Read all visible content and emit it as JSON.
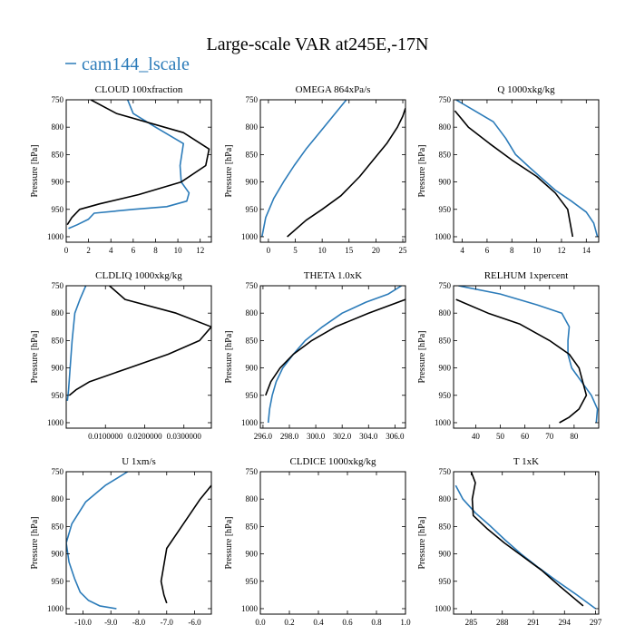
{
  "figure": {
    "title": "Large-scale VAR at245E,-17N",
    "legend": {
      "label": "cam144_lscale",
      "color": "#2b7bb9"
    }
  },
  "colors": {
    "model": "#2b7bb9",
    "reference": "#000000",
    "axis": "#000000"
  },
  "chart_data": [
    {
      "type": "line",
      "title": "CLOUD  100xfraction",
      "ylabel": "Pressure [hPa]",
      "xlim": [
        0,
        13
      ],
      "ylim": [
        1010,
        750
      ],
      "xticks": [
        0,
        2,
        4,
        6,
        8,
        10,
        12
      ],
      "xtick_labels": [
        "0",
        "2",
        "4",
        "6",
        "8",
        "10",
        "12"
      ],
      "yticks": [
        750,
        800,
        850,
        900,
        950,
        1000
      ],
      "ytick_labels": [
        "750",
        "800",
        "850",
        "900",
        "950",
        "1000"
      ],
      "series": [
        {
          "name": "cam144_lscale",
          "color": "#2b7bb9",
          "x": [
            5.5,
            6.0,
            8.0,
            10.5,
            10.2,
            10.3,
            11.0,
            10.8,
            9.0,
            6.0,
            2.5,
            2.0,
            1.0,
            0.2
          ],
          "y": [
            750,
            775,
            800,
            830,
            870,
            900,
            920,
            935,
            945,
            950,
            957,
            968,
            978,
            985
          ]
        },
        {
          "name": "reference",
          "color": "#000000",
          "x": [
            2.2,
            4.5,
            10.5,
            12.8,
            12.5,
            10.3,
            6.5,
            3.0,
            1.2,
            0.5,
            0.1
          ],
          "y": [
            750,
            775,
            810,
            840,
            870,
            900,
            923,
            940,
            950,
            965,
            978
          ]
        }
      ]
    },
    {
      "type": "line",
      "title": "OMEGA  864xPa/s",
      "ylabel": "Pressure [hPa]",
      "xlim": [
        -1.5,
        25.5
      ],
      "ylim": [
        1010,
        750
      ],
      "xticks": [
        0,
        5,
        10,
        15,
        20,
        25
      ],
      "xtick_labels": [
        "0",
        "5",
        "10",
        "15",
        "20",
        "25"
      ],
      "yticks": [
        750,
        800,
        850,
        900,
        950,
        1000
      ],
      "ytick_labels": [
        "750",
        "800",
        "850",
        "900",
        "950",
        "1000"
      ],
      "series": [
        {
          "name": "cam144_lscale",
          "color": "#2b7bb9",
          "x": [
            14.5,
            12.0,
            9.5,
            7.0,
            4.8,
            2.8,
            1.0,
            -0.5,
            -1.2
          ],
          "y": [
            750,
            780,
            810,
            840,
            870,
            900,
            930,
            965,
            1000
          ]
        },
        {
          "name": "reference",
          "color": "#000000",
          "x": [
            25.5,
            25.0,
            24.0,
            22.0,
            19.5,
            17.0,
            13.5,
            10.0,
            7.0,
            3.5
          ],
          "y": [
            765,
            780,
            800,
            830,
            860,
            890,
            925,
            950,
            970,
            1000
          ]
        }
      ]
    },
    {
      "type": "line",
      "title": "Q  1000xkg/kg",
      "ylabel": "Pressure [hPa]",
      "xlim": [
        3.3,
        15
      ],
      "ylim": [
        1010,
        750
      ],
      "xticks": [
        4,
        6,
        8,
        10,
        12,
        14
      ],
      "xtick_labels": [
        "4",
        "6",
        "8",
        "10",
        "12",
        "14"
      ],
      "yticks": [
        750,
        800,
        850,
        900,
        950,
        1000
      ],
      "ytick_labels": [
        "750",
        "800",
        "850",
        "900",
        "950",
        "1000"
      ],
      "series": [
        {
          "name": "cam144_lscale",
          "color": "#2b7bb9",
          "x": [
            3.5,
            5.0,
            6.5,
            7.5,
            8.3,
            9.5,
            10.5,
            11.5,
            12.8,
            14.0,
            14.6,
            14.9
          ],
          "y": [
            750,
            770,
            790,
            820,
            850,
            875,
            895,
            915,
            935,
            955,
            975,
            1000
          ]
        },
        {
          "name": "reference",
          "color": "#000000",
          "x": [
            3.4,
            4.5,
            6.2,
            8.0,
            10.0,
            11.5,
            12.5,
            12.9
          ],
          "y": [
            770,
            800,
            830,
            860,
            890,
            920,
            950,
            1000
          ]
        }
      ]
    },
    {
      "type": "line",
      "title": "CLDLIQ  1000xkg/kg",
      "ylabel": "Pressure [hPa]",
      "xlim": [
        0,
        0.037
      ],
      "ylim": [
        1010,
        750
      ],
      "xticks": [
        0.01,
        0.02,
        0.03
      ],
      "xtick_labels": [
        "0.0100000",
        "0.0200000",
        "0.0300000"
      ],
      "yticks": [
        750,
        800,
        850,
        900,
        950,
        1000
      ],
      "ytick_labels": [
        "750",
        "800",
        "850",
        "900",
        "950",
        "1000"
      ],
      "series": [
        {
          "name": "cam144_lscale",
          "color": "#2b7bb9",
          "x": [
            0.005,
            0.0035,
            0.0022,
            0.0015,
            0.001,
            0.0006,
            0.0003
          ],
          "y": [
            750,
            775,
            800,
            850,
            900,
            940,
            960
          ]
        },
        {
          "name": "reference",
          "color": "#000000",
          "x": [
            0.011,
            0.015,
            0.028,
            0.037,
            0.034,
            0.026,
            0.016,
            0.006,
            0.0025,
            0.0008
          ],
          "y": [
            750,
            775,
            800,
            825,
            850,
            875,
            900,
            925,
            940,
            950
          ]
        }
      ]
    },
    {
      "type": "line",
      "title": "THETA  1.0xK",
      "ylabel": "Pressure [hPa]",
      "xlim": [
        295.8,
        306.8
      ],
      "ylim": [
        1010,
        750
      ],
      "xticks": [
        296,
        298,
        300,
        302,
        304,
        306
      ],
      "xtick_labels": [
        "296.0",
        "298.0",
        "300.0",
        "302.0",
        "304.0",
        "306.0"
      ],
      "yticks": [
        750,
        800,
        850,
        900,
        950,
        1000
      ],
      "ytick_labels": [
        "750",
        "800",
        "850",
        "900",
        "950",
        "1000"
      ],
      "series": [
        {
          "name": "cam144_lscale",
          "color": "#2b7bb9",
          "x": [
            306.5,
            305.5,
            303.8,
            302.0,
            300.5,
            299.2,
            298.3,
            297.5,
            297.0,
            296.7,
            296.5,
            296.4
          ],
          "y": [
            750,
            765,
            780,
            800,
            825,
            850,
            875,
            900,
            925,
            950,
            975,
            1000
          ]
        },
        {
          "name": "reference",
          "color": "#000000",
          "x": [
            306.8,
            304.0,
            301.5,
            299.7,
            298.3,
            297.3,
            296.6,
            296.2
          ],
          "y": [
            775,
            800,
            825,
            850,
            875,
            900,
            925,
            950
          ]
        }
      ]
    },
    {
      "type": "line",
      "title": "RELHUM  1xpercent",
      "ylabel": "Pressure [hPa]",
      "xlim": [
        31,
        90
      ],
      "ylim": [
        1010,
        750
      ],
      "xticks": [
        40,
        50,
        60,
        70,
        80
      ],
      "xtick_labels": [
        "40",
        "50",
        "60",
        "70",
        "80"
      ],
      "yticks": [
        750,
        800,
        850,
        900,
        950,
        1000
      ],
      "ytick_labels": [
        "750",
        "800",
        "850",
        "900",
        "950",
        "1000"
      ],
      "series": [
        {
          "name": "cam144_lscale",
          "color": "#2b7bb9",
          "x": [
            33.0,
            50.0,
            65.0,
            75.0,
            78.0,
            77.5,
            77.5,
            79.0,
            83.0,
            87.0,
            89.5,
            89.0
          ],
          "y": [
            750,
            765,
            785,
            800,
            825,
            850,
            875,
            900,
            925,
            950,
            975,
            1000
          ]
        },
        {
          "name": "reference",
          "color": "#000000",
          "x": [
            32.0,
            45.0,
            58.0,
            70.0,
            78.0,
            82.0,
            85.0,
            82.0,
            78.0,
            74.0
          ],
          "y": [
            775,
            800,
            820,
            850,
            875,
            900,
            950,
            975,
            990,
            1000
          ]
        }
      ]
    },
    {
      "type": "line",
      "title": "U  1xm/s",
      "ylabel": "Pressure [hPa]",
      "xlim": [
        -10.6,
        -5.4
      ],
      "ylim": [
        1010,
        750
      ],
      "xticks": [
        -10,
        -9,
        -8,
        -7,
        -6
      ],
      "xtick_labels": [
        "-10.0",
        "-9.0",
        "-8.0",
        "-7.0",
        "-6.0"
      ],
      "yticks": [
        750,
        800,
        850,
        900,
        950,
        1000
      ],
      "ytick_labels": [
        "750",
        "800",
        "850",
        "900",
        "950",
        "1000"
      ],
      "series": [
        {
          "name": "cam144_lscale",
          "color": "#2b7bb9",
          "x": [
            -8.4,
            -9.2,
            -9.9,
            -10.4,
            -10.6,
            -10.5,
            -10.3,
            -10.1,
            -9.8,
            -9.4,
            -8.8
          ],
          "y": [
            750,
            775,
            805,
            845,
            880,
            915,
            945,
            970,
            985,
            995,
            1000
          ]
        },
        {
          "name": "reference",
          "color": "#000000",
          "x": [
            -5.4,
            -5.8,
            -6.2,
            -6.6,
            -7.0,
            -7.2,
            -7.1,
            -7.0
          ],
          "y": [
            775,
            800,
            830,
            860,
            890,
            950,
            975,
            990
          ]
        }
      ]
    },
    {
      "type": "line",
      "title": "CLDICE  1000xkg/kg",
      "ylabel": "Pressure [hPa]",
      "xlim": [
        0,
        1
      ],
      "ylim": [
        1010,
        750
      ],
      "xticks": [
        0,
        0.2,
        0.4,
        0.6,
        0.8,
        1.0
      ],
      "xtick_labels": [
        "0.0",
        "0.2",
        "0.4",
        "0.6",
        "0.8",
        "1.0"
      ],
      "yticks": [
        750,
        800,
        850,
        900,
        950,
        1000
      ],
      "ytick_labels": [
        "750",
        "800",
        "850",
        "900",
        "950",
        "1000"
      ],
      "series": []
    },
    {
      "type": "line",
      "title": "T  1xK",
      "ylabel": "Pressure [hPa]",
      "xlim": [
        283.3,
        297.3
      ],
      "ylim": [
        1010,
        750
      ],
      "xticks": [
        285,
        288,
        291,
        294,
        297
      ],
      "xtick_labels": [
        "285",
        "288",
        "291",
        "294",
        "297"
      ],
      "yticks": [
        750,
        800,
        850,
        900,
        950,
        1000
      ],
      "ytick_labels": [
        "750",
        "800",
        "850",
        "900",
        "950",
        "1000"
      ],
      "series": [
        {
          "name": "cam144_lscale",
          "color": "#2b7bb9",
          "x": [
            283.5,
            284.2,
            285.4,
            286.9,
            288.3,
            289.8,
            291.5,
            293.3,
            295.2,
            297.0
          ],
          "y": [
            775,
            800,
            825,
            850,
            875,
            900,
            925,
            950,
            975,
            1000
          ]
        },
        {
          "name": "reference",
          "color": "#000000",
          "x": [
            285.0,
            285.4,
            285.1,
            285.2,
            286.6,
            288.2,
            290.0,
            291.8,
            293.6,
            295.8
          ],
          "y": [
            750,
            770,
            800,
            830,
            855,
            880,
            905,
            930,
            960,
            995
          ]
        }
      ]
    }
  ]
}
